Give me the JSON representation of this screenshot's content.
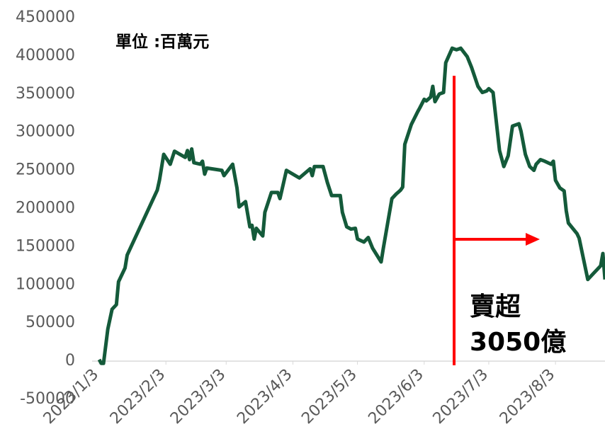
{
  "chart_data": {
    "type": "line",
    "annotations": [
      "單位 :百萬元",
      "賣超",
      "3050億"
    ],
    "x": [
      "2023-01-03",
      "2023-01-04",
      "2023-01-05",
      "2023-01-07",
      "2023-01-09",
      "2023-01-11",
      "2023-01-12",
      "2023-01-15",
      "2023-01-16",
      "2023-01-30",
      "2023-01-31",
      "2023-02-02",
      "2023-02-05",
      "2023-02-07",
      "2023-02-12",
      "2023-02-13",
      "2023-02-14",
      "2023-02-15",
      "2023-02-16",
      "2023-02-19",
      "2023-02-20",
      "2023-02-21",
      "2023-02-22",
      "2023-03-01",
      "2023-03-02",
      "2023-03-06",
      "2023-03-08",
      "2023-03-09",
      "2023-03-12",
      "2023-03-14",
      "2023-03-15",
      "2023-03-16",
      "2023-03-17",
      "2023-03-20",
      "2023-03-21",
      "2023-03-24",
      "2023-03-27",
      "2023-03-28",
      "2023-03-31",
      "2023-04-06",
      "2023-04-11",
      "2023-04-12",
      "2023-04-13",
      "2023-04-17",
      "2023-04-19",
      "2023-04-21",
      "2023-04-25",
      "2023-04-26",
      "2023-04-28",
      "2023-04-30",
      "2023-05-02",
      "2023-05-03",
      "2023-05-06",
      "2023-05-08",
      "2023-05-10",
      "2023-05-14",
      "2023-05-15",
      "2023-05-19",
      "2023-05-21",
      "2023-05-23",
      "2023-05-24",
      "2023-05-25",
      "2023-05-28",
      "2023-05-31",
      "2023-06-01",
      "2023-06-03",
      "2023-06-04",
      "2023-06-06",
      "2023-06-07",
      "2023-06-08",
      "2023-06-10",
      "2023-06-12",
      "2023-06-13",
      "2023-06-16",
      "2023-06-18",
      "2023-06-20",
      "2023-06-23",
      "2023-06-25",
      "2023-06-28",
      "2023-06-30",
      "2023-07-02",
      "2023-07-03",
      "2023-07-05",
      "2023-07-08",
      "2023-07-10",
      "2023-07-12",
      "2023-07-14",
      "2023-07-17",
      "2023-07-18",
      "2023-07-20",
      "2023-07-22",
      "2023-07-24",
      "2023-07-25",
      "2023-07-27",
      "2023-07-29",
      "2023-08-01",
      "2023-08-02",
      "2023-08-03",
      "2023-08-05",
      "2023-08-07",
      "2023-08-08",
      "2023-08-09",
      "2023-08-13",
      "2023-08-14",
      "2023-08-18",
      "2023-08-21",
      "2023-08-24",
      "2023-08-25",
      "2023-08-26"
    ],
    "series": [
      {
        "color": "#145a3a",
        "values": [
          2000,
          -3000,
          -3000,
          42000,
          68000,
          74000,
          104000,
          122000,
          139000,
          224000,
          237000,
          271000,
          258000,
          275000,
          267000,
          276000,
          264000,
          278000,
          260000,
          258000,
          262000,
          245000,
          253000,
          250000,
          243000,
          258000,
          227000,
          202000,
          209000,
          176000,
          178000,
          160000,
          174000,
          164000,
          195000,
          221000,
          221000,
          213000,
          250000,
          240000,
          252000,
          243000,
          255000,
          255000,
          234000,
          217000,
          217000,
          195000,
          176000,
          173000,
          174000,
          160000,
          156000,
          162000,
          148000,
          130000,
          148000,
          213000,
          219000,
          224000,
          228000,
          284000,
          310000,
          327000,
          332000,
          343000,
          341000,
          346000,
          360000,
          340000,
          350000,
          352000,
          391000,
          410000,
          408000,
          410000,
          399000,
          385000,
          360000,
          352000,
          354000,
          357000,
          352000,
          276000,
          255000,
          269000,
          308000,
          311000,
          301000,
          271000,
          255000,
          250000,
          258000,
          264000,
          262000,
          258000,
          262000,
          237000,
          227000,
          223000,
          197000,
          181000,
          167000,
          161000,
          107000,
          116000,
          125000,
          141000,
          107000
        ]
      }
    ],
    "xlim": [
      "2023-01-03",
      "2023-08-26"
    ],
    "xticks": [
      {
        "value": "2023-01-03",
        "label": "2023/1/3"
      },
      {
        "value": "2023-02-03",
        "label": "2023/2/3"
      },
      {
        "value": "2023-03-03",
        "label": "2023/3/3"
      },
      {
        "value": "2023-04-03",
        "label": "2023/4/3"
      },
      {
        "value": "2023-05-03",
        "label": "2023/5/3"
      },
      {
        "value": "2023-06-03",
        "label": "2023/6/3"
      },
      {
        "value": "2023-07-03",
        "label": "2023/7/3"
      },
      {
        "value": "2023-08-03",
        "label": "2023/8/3"
      }
    ],
    "ylim": [
      -50000,
      450000
    ],
    "yticks": [
      -50000,
      0,
      50000,
      100000,
      150000,
      200000,
      250000,
      300000,
      350000,
      400000,
      450000
    ],
    "grid": false
  }
}
